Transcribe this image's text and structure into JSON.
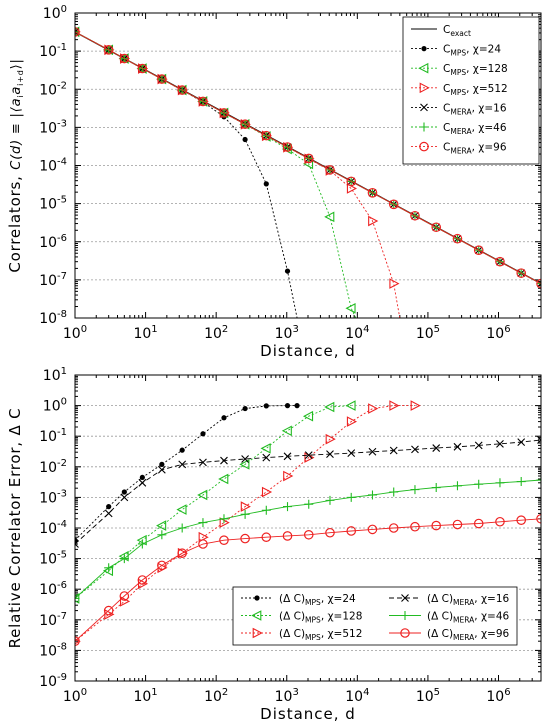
{
  "chart_data": [
    {
      "type": "line",
      "xscale": "log",
      "yscale": "log",
      "xlim": [
        1,
        4000000
      ],
      "ylim": [
        1e-08,
        1
      ],
      "xlabel": "Distance, d",
      "ylabel_main": "Correlators, ",
      "ylabel_formula": "C(d) ≡ |⟨a",
      "ylabel_formula_i": "i",
      "ylabel_formula_mid": "a",
      "ylabel_formula_sub": "i+d",
      "ylabel_formula_end": "⟩|",
      "grid": true,
      "legend_position": "top-right",
      "series": [
        {
          "key": "exact",
          "label": "C",
          "sub": "exact",
          "rest": "",
          "color": "#000000",
          "marker": "none",
          "dash": "none",
          "x": [
            1,
            4000000
          ],
          "y": [
            0.32,
            8e-08
          ]
        },
        {
          "key": "mps24",
          "label": "C",
          "sub": "MPS",
          "rest": ", χ=24",
          "color": "#000000",
          "marker": "dot",
          "dash": "2 2",
          "x": [
            1,
            3,
            5,
            9,
            17,
            33,
            65,
            129,
            257,
            513,
            1025,
            1400
          ],
          "y": [
            0.32,
            0.108,
            0.064,
            0.035,
            0.0185,
            0.0095,
            0.0046,
            0.0019,
            0.00048,
            3.3e-05,
            1.7e-07,
            1e-08
          ]
        },
        {
          "key": "mps128",
          "label": "C",
          "sub": "MPS",
          "rest": ", χ=128",
          "color": "#22bb22",
          "marker": "tri-left",
          "dash": "2 2",
          "x": [
            1,
            3,
            5,
            9,
            17,
            33,
            65,
            129,
            257,
            513,
            1025,
            2049,
            4097,
            8193,
            9500
          ],
          "y": [
            0.32,
            0.108,
            0.064,
            0.035,
            0.0185,
            0.0095,
            0.0048,
            0.0024,
            0.0012,
            0.00058,
            0.00027,
            0.00011,
            4.5e-06,
            1.8e-08,
            1e-08
          ]
        },
        {
          "key": "mps512",
          "label": "C",
          "sub": "MPS",
          "rest": ", χ=512",
          "color": "#ee2222",
          "marker": "tri-right",
          "dash": "2 2",
          "x": [
            1,
            3,
            5,
            9,
            17,
            33,
            65,
            129,
            257,
            513,
            1025,
            2049,
            4097,
            8193,
            16385,
            32769,
            40000
          ],
          "y": [
            0.32,
            0.108,
            0.064,
            0.035,
            0.0185,
            0.0095,
            0.0048,
            0.0024,
            0.0012,
            0.0006,
            0.0003,
            0.00015,
            7.4e-05,
            2.5e-05,
            3.5e-06,
            8e-08,
            1e-08
          ]
        },
        {
          "key": "mera16",
          "label": "C",
          "sub": "MERA",
          "rest": ", χ=16",
          "color": "#000000",
          "marker": "x",
          "dash": "none",
          "x": [
            1,
            3,
            5,
            9,
            17,
            33,
            65,
            129,
            257,
            513,
            1025,
            2049,
            4097,
            8193,
            16385,
            32769,
            65537,
            131073,
            262145,
            524289,
            1048577,
            2097153,
            4000000
          ],
          "y": [
            0.32,
            0.108,
            0.064,
            0.035,
            0.0185,
            0.0095,
            0.0048,
            0.0024,
            0.00121,
            0.000608,
            0.000305,
            0.000153,
            7.66e-05,
            3.83e-05,
            1.92e-05,
            9.6e-06,
            4.8e-06,
            2.4e-06,
            1.2e-06,
            6e-07,
            3e-07,
            1.5e-07,
            8e-08
          ]
        },
        {
          "key": "mera46",
          "label": "C",
          "sub": "MERA",
          "rest": ", χ=46",
          "color": "#22bb22",
          "marker": "plus",
          "dash": "none",
          "x": [
            1,
            3,
            5,
            9,
            17,
            33,
            65,
            129,
            257,
            513,
            1025,
            2049,
            4097,
            8193,
            16385,
            32769,
            65537,
            131073,
            262145,
            524289,
            1048577,
            2097153,
            4000000
          ],
          "y": [
            0.32,
            0.108,
            0.064,
            0.035,
            0.0185,
            0.0095,
            0.0048,
            0.0024,
            0.00121,
            0.000608,
            0.000305,
            0.000153,
            7.66e-05,
            3.83e-05,
            1.92e-05,
            9.6e-06,
            4.8e-06,
            2.4e-06,
            1.2e-06,
            6e-07,
            3e-07,
            1.5e-07,
            8e-08
          ]
        },
        {
          "key": "mera96",
          "label": "C",
          "sub": "MERA",
          "rest": ", χ=96",
          "color": "#ee2222",
          "marker": "circle",
          "dash": "none",
          "x": [
            1,
            3,
            5,
            9,
            17,
            33,
            65,
            129,
            257,
            513,
            1025,
            2049,
            4097,
            8193,
            16385,
            32769,
            65537,
            131073,
            262145,
            524289,
            1048577,
            2097153,
            4000000
          ],
          "y": [
            0.32,
            0.108,
            0.064,
            0.035,
            0.0185,
            0.0095,
            0.0048,
            0.0024,
            0.00121,
            0.000608,
            0.000305,
            0.000153,
            7.66e-05,
            3.83e-05,
            1.92e-05,
            9.6e-06,
            4.8e-06,
            2.4e-06,
            1.2e-06,
            6e-07,
            3e-07,
            1.5e-07,
            8e-08
          ]
        }
      ]
    },
    {
      "type": "line",
      "xscale": "log",
      "yscale": "log",
      "xlim": [
        1,
        4000000
      ],
      "ylim": [
        1e-09,
        10
      ],
      "xlabel": "Distance, d",
      "ylabel": "Relative Correlator Error, Δ C",
      "grid": true,
      "legend_position": "bottom-right",
      "series": [
        {
          "key": "mps24",
          "label": "(Δ C)",
          "sub": "MPS",
          "rest": ", χ=24",
          "color": "#000000",
          "marker": "dot",
          "dash": "2 2",
          "x": [
            1,
            3,
            5,
            9,
            17,
            33,
            65,
            129,
            257,
            513,
            1025,
            1400
          ],
          "y": [
            4e-05,
            0.0005,
            0.0015,
            0.0045,
            0.012,
            0.035,
            0.12,
            0.4,
            0.8,
            0.98,
            1.0,
            1.0
          ]
        },
        {
          "key": "mps128",
          "label": "(Δ C)",
          "sub": "MPS",
          "rest": ", χ=128",
          "color": "#22bb22",
          "marker": "tri-left",
          "dash": "2 2",
          "x": [
            1,
            3,
            5,
            9,
            17,
            33,
            65,
            129,
            257,
            513,
            1025,
            2049,
            4097,
            8193
          ],
          "y": [
            5e-07,
            4e-06,
            1.2e-05,
            4e-05,
            0.00012,
            0.0004,
            0.0012,
            0.004,
            0.012,
            0.04,
            0.15,
            0.45,
            0.9,
            1.0
          ]
        },
        {
          "key": "mps512",
          "label": "(Δ C)",
          "sub": "MPS",
          "rest": ", χ=512",
          "color": "#ee2222",
          "marker": "tri-right",
          "dash": "2 2",
          "x": [
            1,
            3,
            5,
            9,
            17,
            33,
            65,
            129,
            257,
            513,
            1025,
            2049,
            4097,
            8193,
            16385,
            32769,
            65537
          ],
          "y": [
            2e-08,
            1.5e-07,
            4e-07,
            1.5e-06,
            5e-06,
            1.5e-05,
            5e-05,
            0.00015,
            0.0005,
            0.0015,
            0.005,
            0.02,
            0.08,
            0.3,
            0.8,
            1.0,
            1.0
          ]
        },
        {
          "key": "mera16",
          "label": "(Δ C)",
          "sub": "MERA",
          "rest": ", χ=16",
          "color": "#000000",
          "marker": "x",
          "dash": "5 3",
          "x": [
            1,
            3,
            5,
            9,
            17,
            33,
            65,
            129,
            257,
            513,
            1025,
            2049,
            4097,
            8193,
            16385,
            32769,
            65537,
            131073,
            262145,
            524289,
            1048577,
            2097153,
            4000000
          ],
          "y": [
            3e-05,
            0.0003,
            0.001,
            0.003,
            0.008,
            0.012,
            0.014,
            0.016,
            0.018,
            0.02,
            0.022,
            0.024,
            0.026,
            0.028,
            0.031,
            0.034,
            0.037,
            0.041,
            0.045,
            0.05,
            0.056,
            0.064,
            0.075
          ]
        },
        {
          "key": "mera46",
          "label": "(Δ C)",
          "sub": "MERA",
          "rest": ", χ=46",
          "color": "#22bb22",
          "marker": "plus",
          "dash": "none",
          "x": [
            1,
            3,
            5,
            9,
            17,
            33,
            65,
            129,
            257,
            513,
            1025,
            2049,
            4097,
            8193,
            16385,
            32769,
            65537,
            131073,
            262145,
            524289,
            1048577,
            2097153,
            4000000
          ],
          "y": [
            5e-07,
            5e-06,
            1e-05,
            3e-05,
            6e-05,
            0.0001,
            0.00015,
            0.0002,
            0.00028,
            0.00038,
            0.0005,
            0.0006,
            0.0008,
            0.001,
            0.0012,
            0.0015,
            0.0018,
            0.0021,
            0.0024,
            0.0027,
            0.003,
            0.0033,
            0.0037
          ]
        },
        {
          "key": "mera96",
          "label": "(Δ C)",
          "sub": "MERA",
          "rest": ", χ=96",
          "color": "#ee2222",
          "marker": "circle",
          "dash": "none",
          "x": [
            1,
            3,
            5,
            9,
            17,
            33,
            65,
            129,
            257,
            513,
            1025,
            2049,
            4097,
            8193,
            16385,
            32769,
            65537,
            131073,
            262145,
            524289,
            1048577,
            2097153,
            4000000
          ],
          "y": [
            2e-08,
            2e-07,
            6e-07,
            2e-06,
            6e-06,
            1.5e-05,
            3e-05,
            4e-05,
            4.5e-05,
            5e-05,
            5.5e-05,
            6e-05,
            7e-05,
            8e-05,
            9e-05,
            0.0001,
            0.00011,
            0.00012,
            0.00013,
            0.00014,
            0.00016,
            0.00018,
            0.0002
          ]
        }
      ]
    }
  ]
}
